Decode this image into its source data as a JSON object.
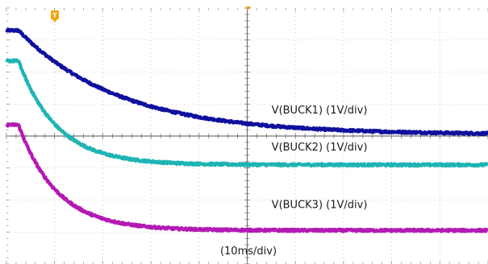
{
  "chart_data": {
    "type": "line",
    "title": "",
    "xlabel": "",
    "ylabel": "",
    "timebase_label": "(10ms/div)",
    "x_unit": "ms",
    "xlim": [
      0,
      100
    ],
    "ylim": [
      -4,
      4
    ],
    "trigger_marker": "T",
    "trigger_time": 2.5,
    "grid": true,
    "grid_divisions": {
      "x": 10,
      "y": 8
    },
    "minor_ticks_per_division": 5,
    "series": [
      {
        "name": "V(BUCK1) (1V/div)",
        "color": "#10109e",
        "initial_level": 3.3,
        "final_level": 0.05,
        "step_time": 2.5,
        "time_constant": 21,
        "label_anchor": [
          65,
          0.7
        ]
      },
      {
        "name": "V(BUCK2) (1V/div)",
        "color": "#1fb4b4",
        "initial_level": 2.35,
        "final_level": -0.9,
        "step_time": 2.5,
        "time_constant": 8,
        "label_anchor": [
          65,
          -0.45
        ]
      },
      {
        "name": "V(BUCK3) (1V/div)",
        "color": "#b31ab3",
        "initial_level": 0.35,
        "final_level": -2.95,
        "step_time": 2.5,
        "time_constant": 8,
        "label_anchor": [
          65,
          -2.25
        ]
      }
    ]
  }
}
